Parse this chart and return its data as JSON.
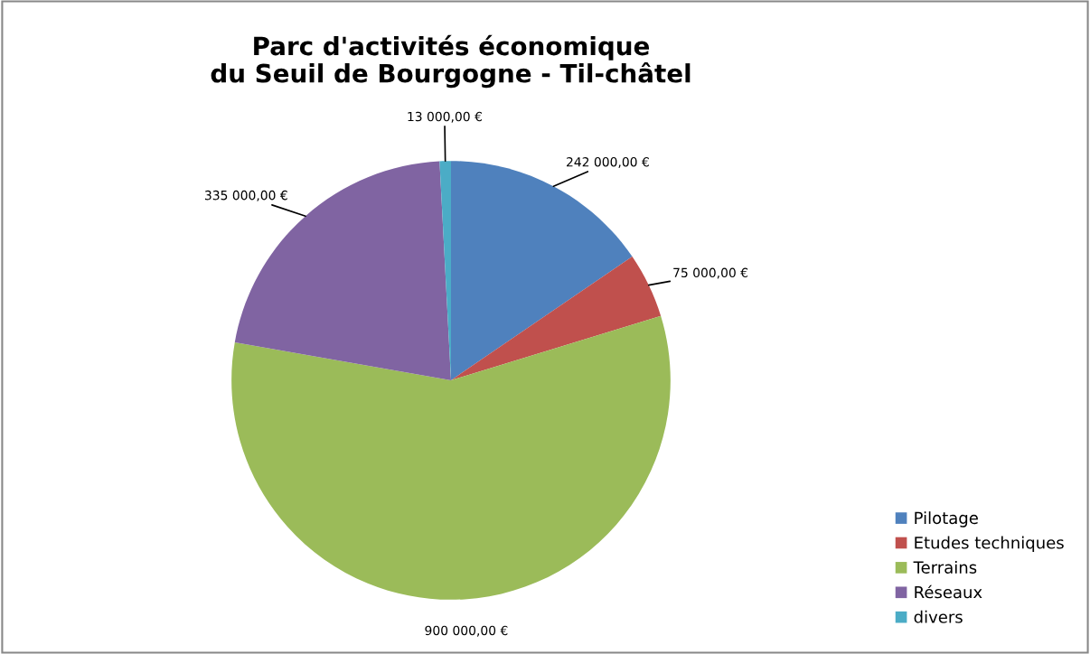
{
  "chart_data": {
    "type": "pie",
    "title": "Parc d'activités économique\ndu Seuil de Bourgogne - Til-châtel",
    "categories": [
      "Pilotage",
      "Etudes techniques",
      "Terrains",
      "Réseaux",
      "divers"
    ],
    "values": [
      242000,
      75000,
      900000,
      335000,
      13000
    ],
    "colors": [
      "#4f81bd",
      "#c0504d",
      "#9bbb59",
      "#8064a2",
      "#4bacc6"
    ],
    "value_labels": [
      "242 000,00 €",
      "75 000,00 €",
      "900 000,00 €",
      "335 000,00 €",
      "13 000,00 €"
    ],
    "legend": "bottom right"
  }
}
